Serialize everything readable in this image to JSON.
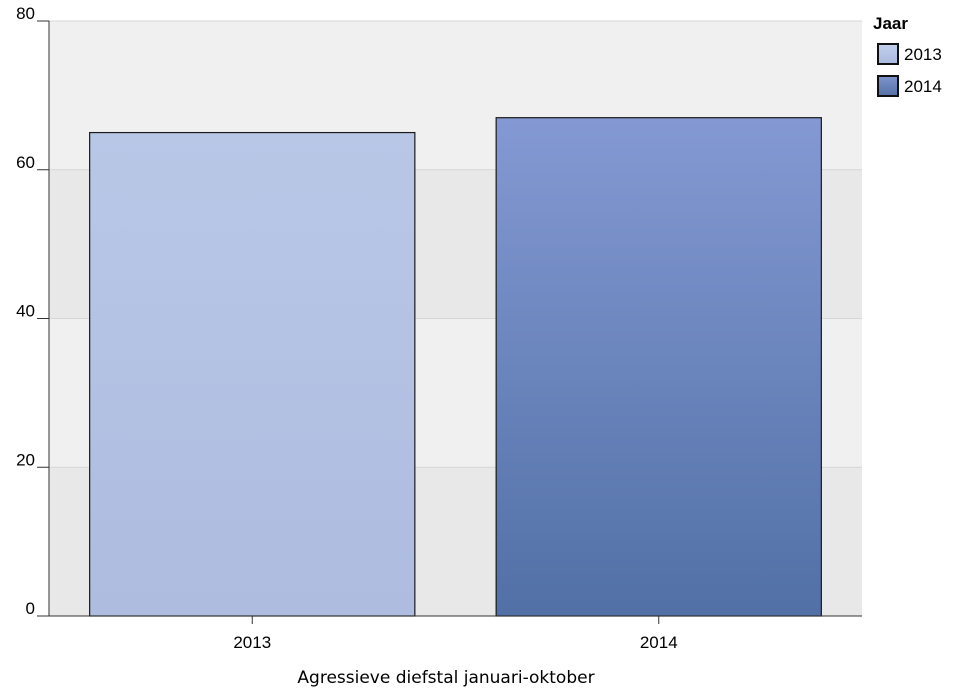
{
  "chart_data": {
    "type": "bar",
    "categories": [
      "2013",
      "2014"
    ],
    "values": [
      65,
      67
    ],
    "colors": [
      "#b4c3e5",
      "#6a82bb"
    ],
    "xlabel": "Agressieve diefstal januari-oktober",
    "ylabel": "",
    "ylim": [
      0,
      80
    ],
    "yticks": [
      "0",
      "20",
      "40",
      "60",
      "80"
    ],
    "grid": true,
    "legend": {
      "title": "Jaar",
      "placement": "top-right",
      "entries": [
        "2013",
        "2014"
      ]
    }
  }
}
